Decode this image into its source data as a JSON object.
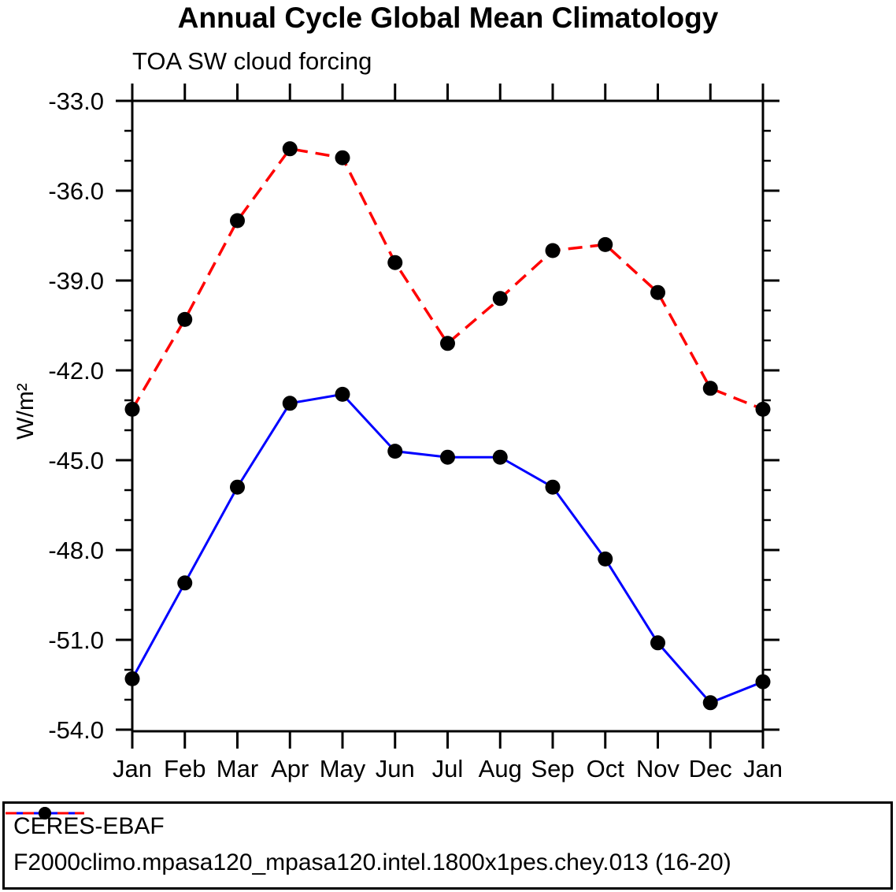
{
  "chart_data": {
    "type": "line",
    "title": "Annual Cycle Global Mean Climatology",
    "subtitle": "TOA SW cloud forcing",
    "ylabel": "W/m²",
    "categories": [
      "Jan",
      "Feb",
      "Mar",
      "Apr",
      "May",
      "Jun",
      "Jul",
      "Aug",
      "Sep",
      "Oct",
      "Nov",
      "Dec",
      "Jan"
    ],
    "series": [
      {
        "name": "CERES-EBAF",
        "color": "#0000ff",
        "line_style": "solid",
        "marker": "filled-circle",
        "marker_color": "#000000",
        "values": [
          -52.3,
          -49.1,
          -45.9,
          -43.1,
          -42.8,
          -44.7,
          -44.9,
          -44.9,
          -45.9,
          -48.3,
          -51.1,
          -53.1,
          -52.4
        ]
      },
      {
        "name": "F2000climo.mpasa120_mpasa120.intel.1800x1pes.chey.013 (16-20)",
        "color": "#ff0000",
        "line_style": "dashed",
        "marker": "filled-circle",
        "marker_color": "#000000",
        "values": [
          -43.3,
          -40.3,
          -37.0,
          -34.6,
          -34.9,
          -38.4,
          -41.1,
          -39.6,
          -38.0,
          -37.8,
          -39.4,
          -42.6,
          -43.3
        ]
      }
    ],
    "y_major_ticks": [
      -33.0,
      -36.0,
      -39.0,
      -42.0,
      -45.0,
      -48.0,
      -51.0,
      -54.0
    ],
    "y_tick_labels": [
      "-33.0",
      "-36.0",
      "-39.0",
      "-42.0",
      "-45.0",
      "-48.0",
      "-51.0",
      "-54.0"
    ],
    "y_minor_step": 1.0,
    "ylim": [
      -54.05,
      -33.0
    ],
    "grid": "off",
    "legend_position": "bottom-box",
    "axis_color": "#000000",
    "background_color": "#ffffff"
  }
}
